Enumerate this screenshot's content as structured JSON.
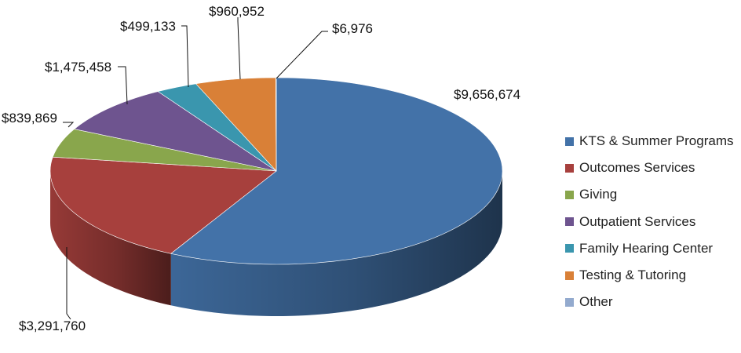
{
  "chart_data": {
    "type": "pie",
    "style": "3d",
    "categories": [
      "KTS & Summer Programs",
      "Outcomes Services",
      "Giving",
      "Outpatient Services",
      "Family Hearing Center",
      "Testing & Tutoring",
      "Other"
    ],
    "values": [
      9656674,
      3291760,
      839869,
      1475458,
      499133,
      960952,
      6976
    ],
    "data_labels": [
      "$9,656,674",
      "$3,291,760",
      "$839,869",
      "$1,475,458",
      "$499,133",
      "$960,952",
      "$6,976"
    ],
    "colors": [
      "#4372A8",
      "#A7403D",
      "#89A64C",
      "#6E548F",
      "#3A96AE",
      "#D98037",
      "#93AACE"
    ],
    "legend_position": "right"
  }
}
